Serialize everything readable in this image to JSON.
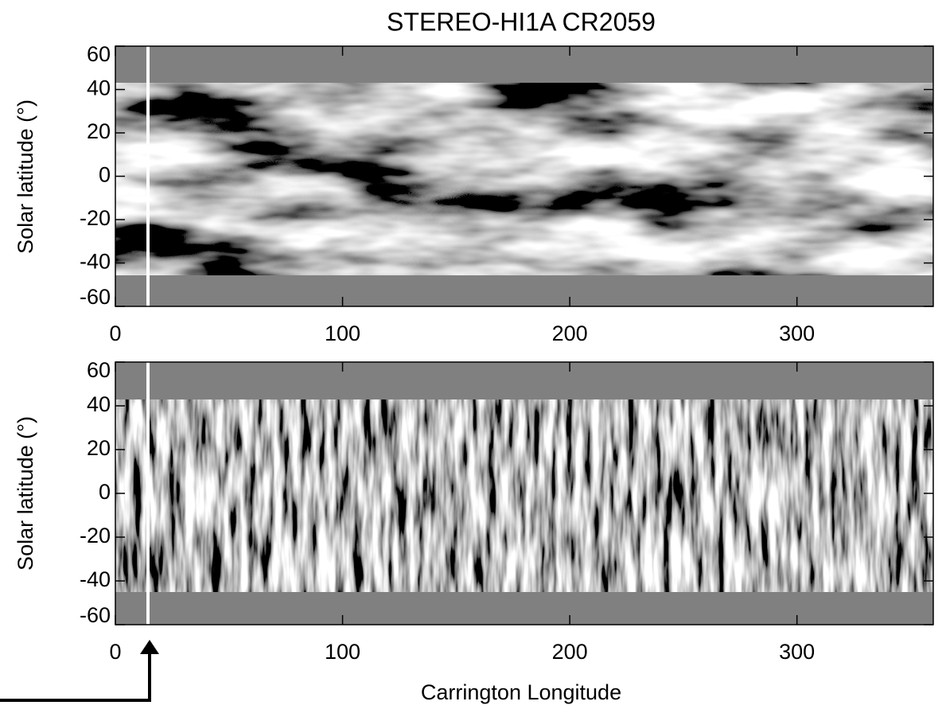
{
  "chart_data": [
    {
      "type": "image",
      "title": "STEREO-HI1A CR2059",
      "ylabel": "Solar latitude (°)",
      "xlim": [
        0,
        360
      ],
      "xticks": [
        0,
        100,
        200,
        300
      ],
      "ylim": [
        -60,
        60
      ],
      "yticks": [
        -60,
        -40,
        -20,
        0,
        20,
        40,
        60
      ]
    },
    {
      "type": "image",
      "ylabel": "Solar latitude (°)",
      "xlabel": "Carrington Longitude",
      "xlim": [
        0,
        360
      ],
      "xticks": [
        0,
        100,
        200,
        300
      ],
      "ylim": [
        -60,
        60
      ],
      "yticks": [
        -60,
        -40,
        -20,
        0,
        20,
        40,
        60
      ]
    }
  ]
}
